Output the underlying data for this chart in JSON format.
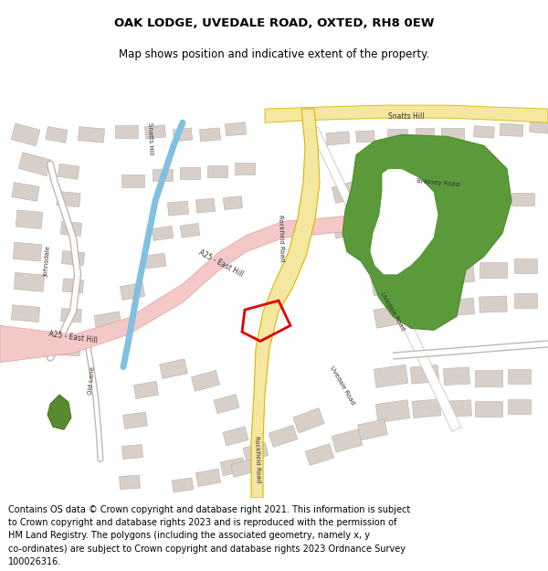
{
  "title": "OAK LODGE, UVEDALE ROAD, OXTED, RH8 0EW",
  "subtitle": "Map shows position and indicative extent of the property.",
  "footer_lines": [
    "Contains OS data © Crown copyright and database right 2021. This information is subject",
    "to Crown copyright and database rights 2023 and is reproduced with the permission of",
    "HM Land Registry. The polygons (including the associated geometry, namely x, y",
    "co-ordinates) are subject to Crown copyright and database rights 2023 Ordnance Survey",
    "100026316."
  ],
  "map_bg": "#ffffff",
  "road_yellow_fill": "#f5e6a0",
  "road_yellow_edge": "#d4b800",
  "road_pink_fill": "#f5c8c8",
  "road_pink_edge": "#e0a0a0",
  "road_white_fill": "#ffffff",
  "road_gray_edge": "#c0b8b0",
  "building_fill": "#d8d0c8",
  "building_edge": "#b8b0a8",
  "green_fill": "#5a9a3a",
  "green_edge": "#4a8a2a",
  "water_color": "#80c0e0",
  "green_small": "#4a8a2a",
  "red_poly": "#e00000",
  "title_fontsize": 9.5,
  "subtitle_fontsize": 8.5,
  "footer_fontsize": 7.0
}
